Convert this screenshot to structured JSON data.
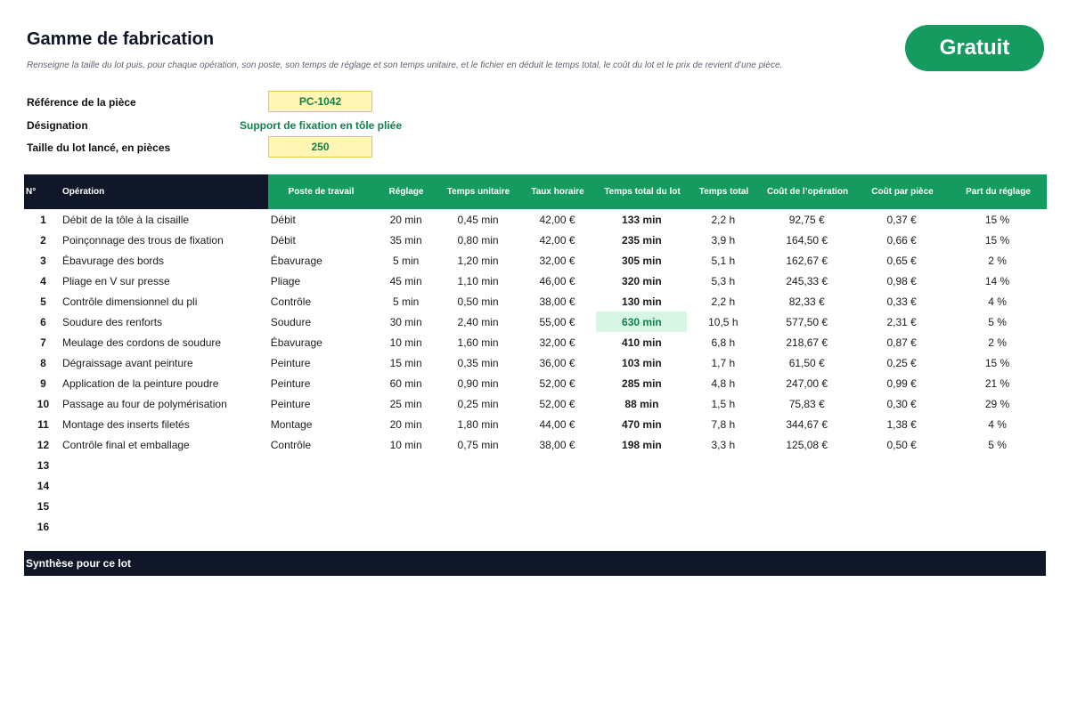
{
  "header": {
    "title": "Gamme de fabrication",
    "subtitle": "Renseigne la taille du lot puis, pour chaque opération, son poste, son temps de réglage et son temps unitaire, et le fichier en déduit le temps total, le coût du lot et le prix de revient d’une pièce.",
    "badge": "Gratuit"
  },
  "params": {
    "reference_label": "Référence de la pièce",
    "reference_value": "PC-1042",
    "designation_label": "Désignation",
    "designation_value": "Support de fixation en tôle pliée",
    "lot_label": "Taille du lot lancé, en pièces",
    "lot_value": "250"
  },
  "columns": [
    "N°",
    "Opération",
    "Poste de travail",
    "Réglage",
    "Temps unitaire",
    "Taux horaire",
    "Temps total du lot",
    "Temps total",
    "Coût de l’opération",
    "Coût par pièce",
    "Part du réglage"
  ],
  "rows": [
    {
      "no": "1",
      "op": "Débit de la tôle à la cisaille",
      "post": "Débit",
      "reg": "20 min",
      "tu": "0,45 min",
      "th": "42,00 €",
      "ttl": "133 min",
      "tt": "2,2 h",
      "co": "92,75 €",
      "cp": "0,37 €",
      "pr": "15 %"
    },
    {
      "no": "2",
      "op": "Poinçonnage des trous de fixation",
      "post": "Débit",
      "reg": "35 min",
      "tu": "0,80 min",
      "th": "42,00 €",
      "ttl": "235 min",
      "tt": "3,9 h",
      "co": "164,50 €",
      "cp": "0,66 €",
      "pr": "15 %"
    },
    {
      "no": "3",
      "op": "Ébavurage des bords",
      "post": "Ébavurage",
      "reg": "5 min",
      "tu": "1,20 min",
      "th": "32,00 €",
      "ttl": "305 min",
      "tt": "5,1 h",
      "co": "162,67 €",
      "cp": "0,65 €",
      "pr": "2 %"
    },
    {
      "no": "4",
      "op": "Pliage en V sur presse",
      "post": "Pliage",
      "reg": "45 min",
      "tu": "1,10 min",
      "th": "46,00 €",
      "ttl": "320 min",
      "tt": "5,3 h",
      "co": "245,33 €",
      "cp": "0,98 €",
      "pr": "14 %"
    },
    {
      "no": "5",
      "op": "Contrôle dimensionnel du pli",
      "post": "Contrôle",
      "reg": "5 min",
      "tu": "0,50 min",
      "th": "38,00 €",
      "ttl": "130 min",
      "tt": "2,2 h",
      "co": "82,33 €",
      "cp": "0,33 €",
      "pr": "4 %"
    },
    {
      "no": "6",
      "op": "Soudure des renforts",
      "post": "Soudure",
      "reg": "30 min",
      "tu": "2,40 min",
      "th": "55,00 €",
      "ttl": "630 min",
      "tt": "10,5 h",
      "co": "577,50 €",
      "cp": "2,31 €",
      "pr": "5 %",
      "highlight": true
    },
    {
      "no": "7",
      "op": "Meulage des cordons de soudure",
      "post": "Ébavurage",
      "reg": "10 min",
      "tu": "1,60 min",
      "th": "32,00 €",
      "ttl": "410 min",
      "tt": "6,8 h",
      "co": "218,67 €",
      "cp": "0,87 €",
      "pr": "2 %"
    },
    {
      "no": "8",
      "op": "Dégraissage avant peinture",
      "post": "Peinture",
      "reg": "15 min",
      "tu": "0,35 min",
      "th": "36,00 €",
      "ttl": "103 min",
      "tt": "1,7 h",
      "co": "61,50 €",
      "cp": "0,25 €",
      "pr": "15 %"
    },
    {
      "no": "9",
      "op": "Application de la peinture poudre",
      "post": "Peinture",
      "reg": "60 min",
      "tu": "0,90 min",
      "th": "52,00 €",
      "ttl": "285 min",
      "tt": "4,8 h",
      "co": "247,00 €",
      "cp": "0,99 €",
      "pr": "21 %"
    },
    {
      "no": "10",
      "op": "Passage au four de polymérisation",
      "post": "Peinture",
      "reg": "25 min",
      "tu": "0,25 min",
      "th": "52,00 €",
      "ttl": "88 min",
      "tt": "1,5 h",
      "co": "75,83 €",
      "cp": "0,30 €",
      "pr": "29 %"
    },
    {
      "no": "11",
      "op": "Montage des inserts filetés",
      "post": "Montage",
      "reg": "20 min",
      "tu": "1,80 min",
      "th": "44,00 €",
      "ttl": "470 min",
      "tt": "7,8 h",
      "co": "344,67 €",
      "cp": "1,38 €",
      "pr": "4 %"
    },
    {
      "no": "12",
      "op": "Contrôle final et emballage",
      "post": "Contrôle",
      "reg": "10 min",
      "tu": "0,75 min",
      "th": "38,00 €",
      "ttl": "198 min",
      "tt": "3,3 h",
      "co": "125,08 €",
      "cp": "0,50 €",
      "pr": "5 %"
    },
    {
      "no": "13",
      "op": "",
      "post": "",
      "reg": "",
      "tu": "",
      "th": "",
      "ttl": "",
      "tt": "",
      "co": "",
      "cp": "",
      "pr": ""
    },
    {
      "no": "14",
      "op": "",
      "post": "",
      "reg": "",
      "tu": "",
      "th": "",
      "ttl": "",
      "tt": "",
      "co": "",
      "cp": "",
      "pr": ""
    },
    {
      "no": "15",
      "op": "",
      "post": "",
      "reg": "",
      "tu": "",
      "th": "",
      "ttl": "",
      "tt": "",
      "co": "",
      "cp": "",
      "pr": ""
    },
    {
      "no": "16",
      "op": "",
      "post": "",
      "reg": "",
      "tu": "",
      "th": "",
      "ttl": "",
      "tt": "",
      "co": "",
      "cp": "",
      "pr": ""
    }
  ],
  "summary": {
    "label": "Synthèse pour ce lot"
  },
  "colors": {
    "dark_header": "#0f1729",
    "green_header": "#159a60",
    "input_fill": "#fff6b5",
    "highlight": "#d6f5e3",
    "accent_text": "#13804a"
  }
}
